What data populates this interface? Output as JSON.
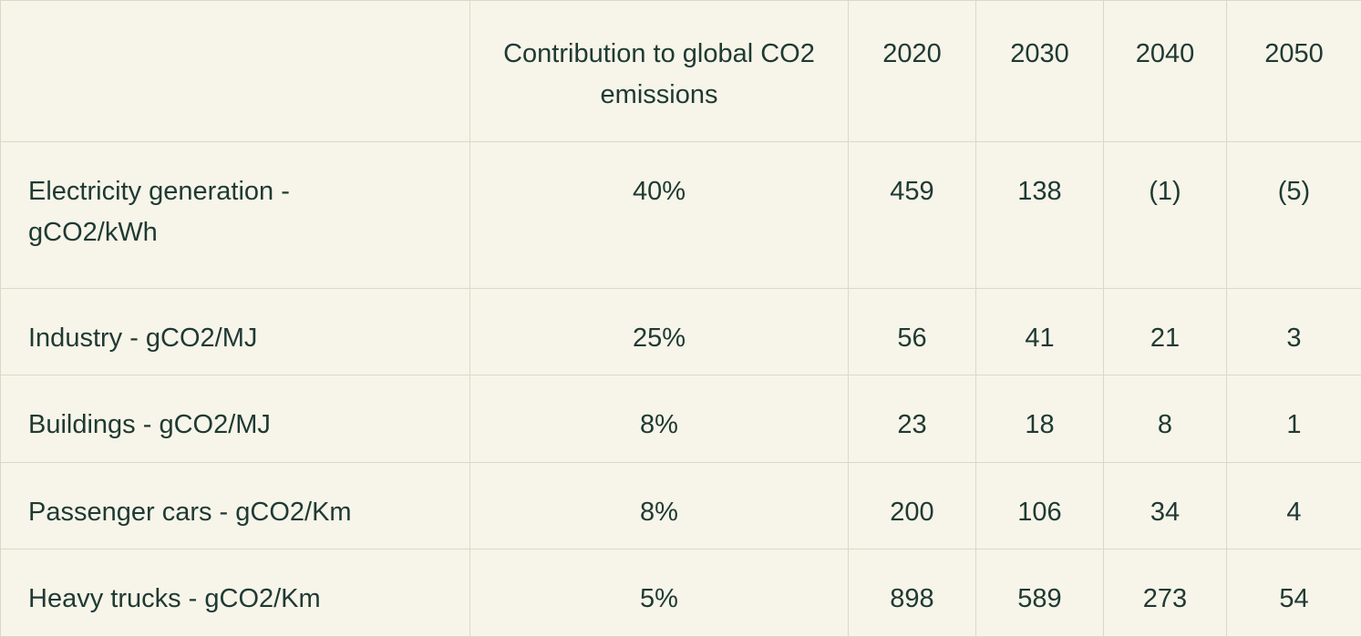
{
  "colors": {
    "background": "#f7f4e9",
    "text": "#1e3a33",
    "border": "#dcd8c8"
  },
  "table": {
    "header": {
      "row_label": "",
      "contribution": "Contribution to global CO2 emissions",
      "years": [
        "2020",
        "2030",
        "2040",
        "2050"
      ]
    },
    "rows": [
      {
        "label": "Electricity generation - gCO2/kWh",
        "contribution": "40%",
        "values": [
          "459",
          "138",
          "(1)",
          "(5)"
        ]
      },
      {
        "label": "Industry - gCO2/MJ",
        "contribution": "25%",
        "values": [
          "56",
          "41",
          "21",
          "3"
        ]
      },
      {
        "label": "Buildings - gCO2/MJ",
        "contribution": "8%",
        "values": [
          "23",
          "18",
          "8",
          "1"
        ]
      },
      {
        "label": "Passenger cars - gCO2/Km",
        "contribution": "8%",
        "values": [
          "200",
          "106",
          "34",
          "4"
        ]
      },
      {
        "label": "Heavy trucks - gCO2/Km",
        "contribution": "5%",
        "values": [
          "898",
          "589",
          "273",
          "54"
        ]
      }
    ]
  },
  "chart_data": {
    "type": "table",
    "columns": [
      "",
      "Contribution to global CO2 emissions",
      "2020",
      "2030",
      "2040",
      "2050"
    ],
    "rows": [
      [
        "Electricity generation - gCO2/kWh",
        "40%",
        "459",
        "138",
        "(1)",
        "(5)"
      ],
      [
        "Industry - gCO2/MJ",
        "25%",
        "56",
        "41",
        "21",
        "3"
      ],
      [
        "Buildings - gCO2/MJ",
        "8%",
        "23",
        "18",
        "8",
        "1"
      ],
      [
        "Passenger cars - gCO2/Km",
        "8%",
        "200",
        "106",
        "34",
        "4"
      ],
      [
        "Heavy trucks - gCO2/Km",
        "5%",
        "898",
        "589",
        "273",
        "54"
      ]
    ]
  }
}
